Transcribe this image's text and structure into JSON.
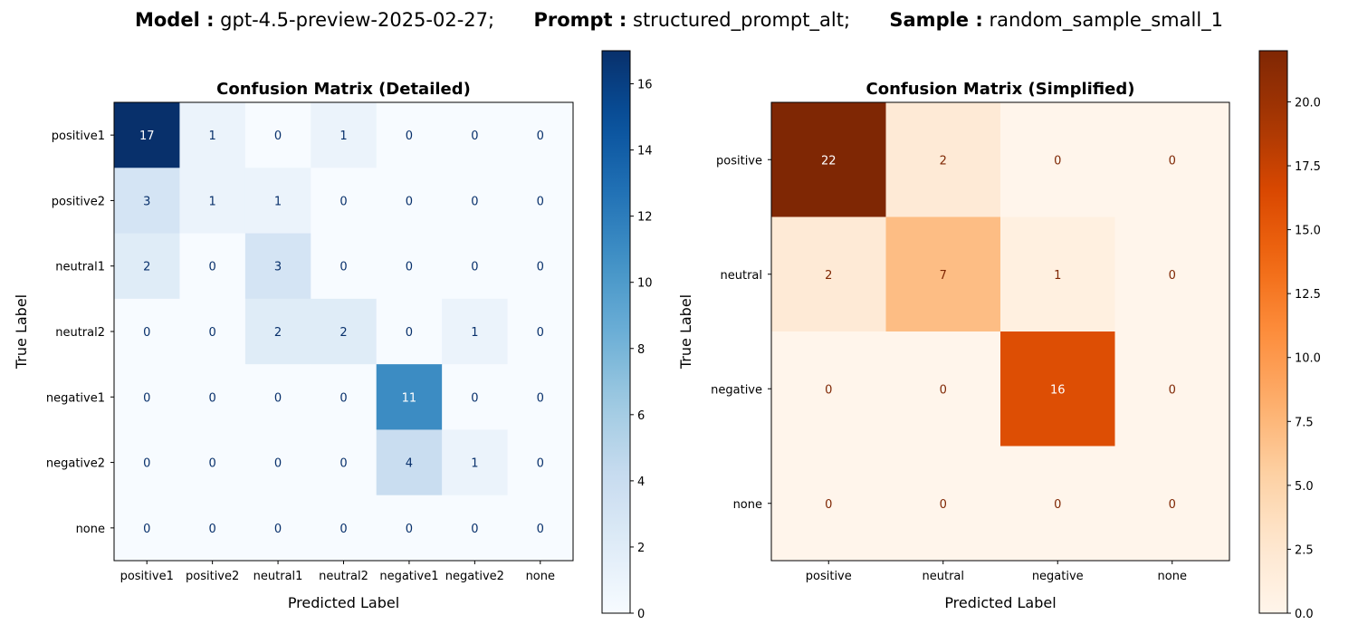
{
  "header": {
    "model_label": "Model :",
    "model_value": "gpt-4.5-preview-2025-02-27;",
    "prompt_label": "Prompt :",
    "prompt_value": "structured_prompt_alt;",
    "sample_label": "Sample :",
    "sample_value": "random_sample_small_1"
  },
  "chart_data": [
    {
      "type": "heatmap",
      "title": "Confusion Matrix (Detailed)",
      "xlabel": "Predicted Label",
      "ylabel": "True Label",
      "x_categories": [
        "positive1",
        "positive2",
        "neutral1",
        "neutral2",
        "negative1",
        "negative2",
        "none"
      ],
      "y_categories": [
        "positive1",
        "positive2",
        "neutral1",
        "neutral2",
        "negative1",
        "negative2",
        "none"
      ],
      "values": [
        [
          17,
          1,
          0,
          1,
          0,
          0,
          0
        ],
        [
          3,
          1,
          1,
          0,
          0,
          0,
          0
        ],
        [
          2,
          0,
          3,
          0,
          0,
          0,
          0
        ],
        [
          0,
          0,
          2,
          2,
          0,
          1,
          0
        ],
        [
          0,
          0,
          0,
          0,
          11,
          0,
          0
        ],
        [
          0,
          0,
          0,
          0,
          4,
          1,
          0
        ],
        [
          0,
          0,
          0,
          0,
          0,
          0,
          0
        ]
      ],
      "colormap": "Blues",
      "color_range": [
        0,
        17
      ],
      "colorbar_ticks": [
        "0",
        "2",
        "4",
        "6",
        "8",
        "10",
        "12",
        "14",
        "16"
      ],
      "colorbar_tick_values": [
        0,
        2,
        4,
        6,
        8,
        10,
        12,
        14,
        16
      ]
    },
    {
      "type": "heatmap",
      "title": "Confusion Matrix (Simplified)",
      "xlabel": "Predicted Label",
      "ylabel": "True Label",
      "x_categories": [
        "positive",
        "neutral",
        "negative",
        "none"
      ],
      "y_categories": [
        "positive",
        "neutral",
        "negative",
        "none"
      ],
      "values": [
        [
          22,
          2,
          0,
          0
        ],
        [
          2,
          7,
          1,
          0
        ],
        [
          0,
          0,
          16,
          0
        ],
        [
          0,
          0,
          0,
          0
        ]
      ],
      "colormap": "Oranges",
      "color_range": [
        0,
        22
      ],
      "colorbar_ticks": [
        "0.0",
        "2.5",
        "5.0",
        "7.5",
        "10.0",
        "12.5",
        "15.0",
        "17.5",
        "20.0"
      ],
      "colorbar_tick_values": [
        0,
        2.5,
        5,
        7.5,
        10,
        12.5,
        15,
        17.5,
        20
      ]
    }
  ]
}
